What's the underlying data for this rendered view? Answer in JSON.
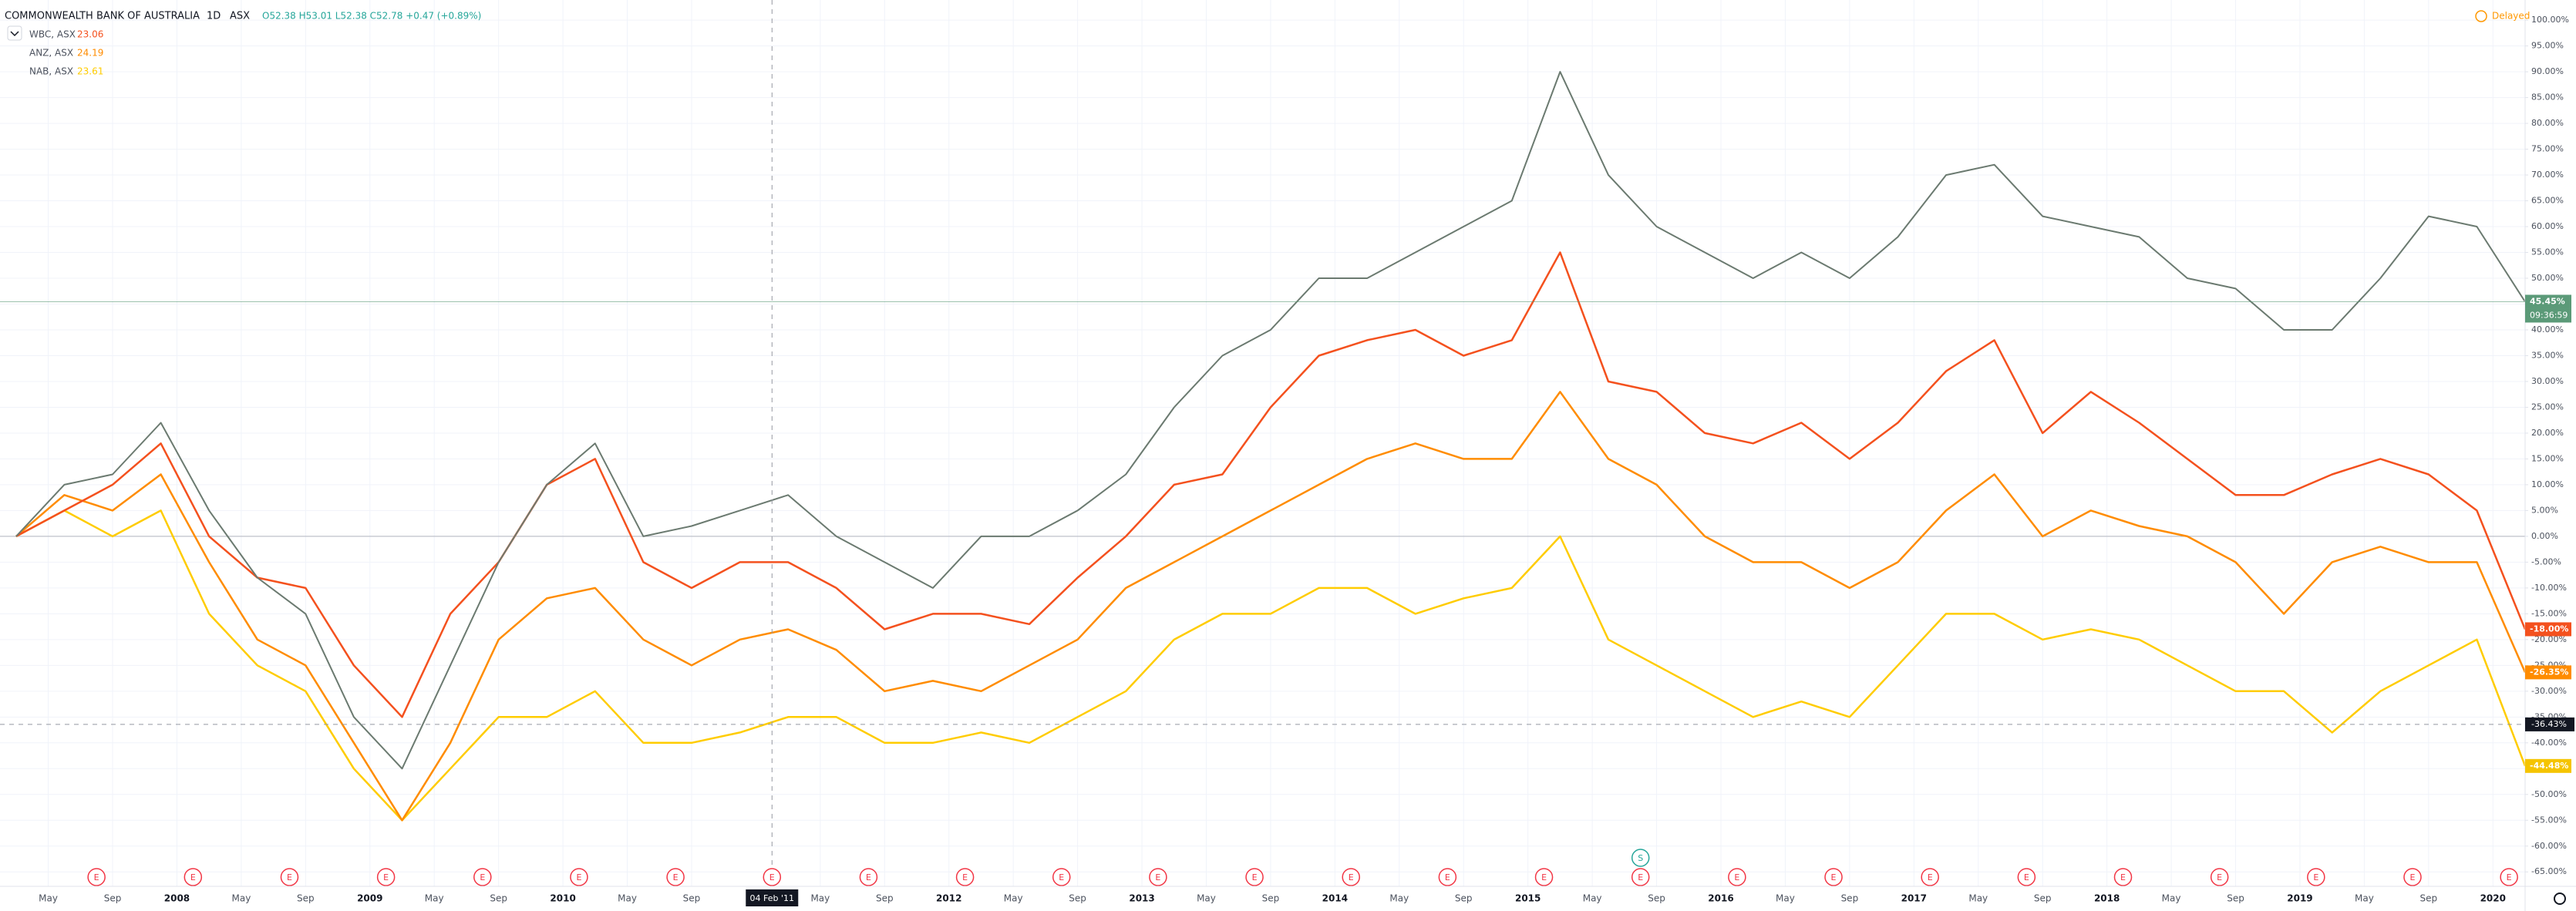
{
  "chart_data": {
    "type": "line",
    "interval": "1D",
    "exchange": "ASX",
    "ohlc_text": "O52.38 H53.01 L52.38 C52.78 +0.47 (+0.89%)",
    "status": "Delayed",
    "countdown": "09:36:59",
    "x": [
      "2007-03",
      "2007-06",
      "2007-09",
      "2007-12",
      "2008-03",
      "2008-06",
      "2008-09",
      "2008-12",
      "2009-03",
      "2009-06",
      "2009-09",
      "2009-12",
      "2010-03",
      "2010-06",
      "2010-09",
      "2010-12",
      "2011-03",
      "2011-06",
      "2011-09",
      "2011-12",
      "2012-03",
      "2012-06",
      "2012-09",
      "2012-12",
      "2013-03",
      "2013-06",
      "2013-09",
      "2013-12",
      "2014-03",
      "2014-06",
      "2014-09",
      "2014-12",
      "2015-03",
      "2015-06",
      "2015-09",
      "2015-12",
      "2016-03",
      "2016-06",
      "2016-09",
      "2016-12",
      "2017-03",
      "2017-06",
      "2017-09",
      "2017-12",
      "2018-03",
      "2018-06",
      "2018-09",
      "2018-12",
      "2019-03",
      "2019-06",
      "2019-09",
      "2019-12",
      "2020-03"
    ],
    "series": [
      {
        "name": "COMMONWEALTH BANK OF AUSTRALIA",
        "color": "#6b7a70",
        "last_label": "45.45%",
        "label_color": "#5b9a78",
        "values": [
          0,
          10,
          12,
          22,
          5,
          -8,
          -15,
          -35,
          -45,
          -25,
          -5,
          10,
          18,
          0,
          2,
          5,
          8,
          0,
          -5,
          -10,
          0,
          0,
          5,
          12,
          25,
          35,
          40,
          50,
          50,
          55,
          60,
          65,
          90,
          70,
          60,
          55,
          50,
          55,
          50,
          58,
          70,
          72,
          62,
          60,
          58,
          50,
          48,
          40,
          40,
          50,
          62,
          60,
          45.45
        ]
      },
      {
        "name": "WBC, ASX",
        "price": 23.06,
        "color": "#f4511e",
        "last_label": "-18.00%",
        "label_color": "#f4511e",
        "values": [
          0,
          5,
          10,
          18,
          0,
          -8,
          -10,
          -25,
          -35,
          -15,
          -5,
          10,
          15,
          -5,
          -10,
          -5,
          -5,
          -10,
          -18,
          -15,
          -15,
          -17,
          -8,
          0,
          10,
          12,
          25,
          35,
          38,
          40,
          35,
          38,
          55,
          30,
          28,
          20,
          18,
          22,
          15,
          22,
          32,
          38,
          20,
          28,
          22,
          15,
          8,
          8,
          12,
          15,
          12,
          5,
          -18
        ]
      },
      {
        "name": "ANZ, ASX",
        "price": 24.19,
        "color": "#ff8c00",
        "last_label": "-26.35%",
        "label_color": "#ff8c00",
        "values": [
          0,
          8,
          5,
          12,
          -5,
          -20,
          -25,
          -40,
          -55,
          -40,
          -20,
          -12,
          -10,
          -20,
          -25,
          -20,
          -18,
          -22,
          -30,
          -28,
          -30,
          -25,
          -20,
          -10,
          -5,
          0,
          5,
          10,
          15,
          18,
          15,
          15,
          28,
          15,
          10,
          0,
          -5,
          -5,
          -10,
          -5,
          5,
          12,
          0,
          5,
          2,
          0,
          -5,
          -15,
          -5,
          -2,
          -5,
          -5,
          -26.35
        ]
      },
      {
        "name": "NAB, ASX",
        "price": 23.61,
        "color": "#ffcc00",
        "last_label": "-44.48%",
        "label_color": "#f5c400",
        "values": [
          0,
          5,
          0,
          5,
          -15,
          -25,
          -30,
          -45,
          -55,
          -45,
          -35,
          -35,
          -30,
          -40,
          -40,
          -38,
          -35,
          -35,
          -40,
          -40,
          -38,
          -40,
          -35,
          -30,
          -20,
          -15,
          -15,
          -10,
          -10,
          -15,
          -12,
          -10,
          0,
          -20,
          -25,
          -30,
          -35,
          -32,
          -35,
          -25,
          -15,
          -15,
          -20,
          -18,
          -20,
          -25,
          -30,
          -30,
          -38,
          -30,
          -25,
          -20,
          -44.48
        ]
      }
    ],
    "xlim": [
      "2007-02",
      "2020-03"
    ],
    "ylim": [
      -67.8,
      103.9
    ],
    "grid": true,
    "yticks": [
      {
        "value": 100,
        "label": "100.00%"
      },
      {
        "value": 95,
        "label": "95.00%"
      },
      {
        "value": 90,
        "label": "90.00%"
      },
      {
        "value": 85,
        "label": "85.00%"
      },
      {
        "value": 80,
        "label": "80.00%"
      },
      {
        "value": 75,
        "label": "75.00%"
      },
      {
        "value": 70,
        "label": "70.00%"
      },
      {
        "value": 65,
        "label": "65.00%"
      },
      {
        "value": 60,
        "label": "60.00%"
      },
      {
        "value": 55,
        "label": "55.00%"
      },
      {
        "value": 50,
        "label": "50.00%"
      },
      {
        "value": 45,
        "label": "45.00%"
      },
      {
        "value": 40,
        "label": "40.00%"
      },
      {
        "value": 35,
        "label": "35.00%"
      },
      {
        "value": 30,
        "label": "30.00%"
      },
      {
        "value": 25,
        "label": "25.00%"
      },
      {
        "value": 20,
        "label": "20.00%"
      },
      {
        "value": 15,
        "label": "15.00%"
      },
      {
        "value": 10,
        "label": "10.00%"
      },
      {
        "value": 5,
        "label": "5.00%"
      },
      {
        "value": 0,
        "label": "0.00%"
      },
      {
        "value": -5,
        "label": "-5.00%"
      },
      {
        "value": -10,
        "label": "-10.00%"
      },
      {
        "value": -15,
        "label": "-15.00%"
      },
      {
        "value": -20,
        "label": "-20.00%"
      },
      {
        "value": -25,
        "label": "-25.00%"
      },
      {
        "value": -30,
        "label": "-30.00%"
      },
      {
        "value": -35,
        "label": "-35.00%"
      },
      {
        "value": -40,
        "label": "-40.00%"
      },
      {
        "value": -45,
        "label": "-45.00%"
      },
      {
        "value": -50,
        "label": "-50.00%"
      },
      {
        "value": -55,
        "label": "-55.00%"
      },
      {
        "value": -60,
        "label": "-60.00%"
      },
      {
        "value": -65,
        "label": "-65.00%"
      }
    ],
    "xticks": [
      {
        "value": "2007-05",
        "label": "May"
      },
      {
        "value": "2007-09",
        "label": "Sep"
      },
      {
        "value": "2008-01",
        "label": "2008"
      },
      {
        "value": "2008-05",
        "label": "May"
      },
      {
        "value": "2008-09",
        "label": "Sep"
      },
      {
        "value": "2009-01",
        "label": "2009"
      },
      {
        "value": "2009-05",
        "label": "May"
      },
      {
        "value": "2009-09",
        "label": "Sep"
      },
      {
        "value": "2010-01",
        "label": "2010"
      },
      {
        "value": "2010-05",
        "label": "May"
      },
      {
        "value": "2010-09",
        "label": "Sep"
      },
      {
        "value": "2011-05",
        "label": "May"
      },
      {
        "value": "2011-09",
        "label": "Sep"
      },
      {
        "value": "2012-01",
        "label": "2012"
      },
      {
        "value": "2012-05",
        "label": "May"
      },
      {
        "value": "2012-09",
        "label": "Sep"
      },
      {
        "value": "2013-01",
        "label": "2013"
      },
      {
        "value": "2013-05",
        "label": "May"
      },
      {
        "value": "2013-09",
        "label": "Sep"
      },
      {
        "value": "2014-01",
        "label": "2014"
      },
      {
        "value": "2014-05",
        "label": "May"
      },
      {
        "value": "2014-09",
        "label": "Sep"
      },
      {
        "value": "2015-01",
        "label": "2015"
      },
      {
        "value": "2015-05",
        "label": "May"
      },
      {
        "value": "2015-09",
        "label": "Sep"
      },
      {
        "value": "2016-01",
        "label": "2016"
      },
      {
        "value": "2016-05",
        "label": "May"
      },
      {
        "value": "2016-09",
        "label": "Sep"
      },
      {
        "value": "2017-01",
        "label": "2017"
      },
      {
        "value": "2017-05",
        "label": "May"
      },
      {
        "value": "2017-09",
        "label": "Sep"
      },
      {
        "value": "2018-01",
        "label": "2018"
      },
      {
        "value": "2018-05",
        "label": "May"
      },
      {
        "value": "2018-09",
        "label": "Sep"
      },
      {
        "value": "2019-01",
        "label": "2019"
      },
      {
        "value": "2019-05",
        "label": "May"
      },
      {
        "value": "2019-09",
        "label": "Sep"
      },
      {
        "value": "2020-01",
        "label": "2020"
      }
    ],
    "crosshair": {
      "x": "2011-02",
      "x_label": "04 Feb '11",
      "y": -36.43,
      "y_label": "-36.43%"
    },
    "earnings_label": "E",
    "earnings_dates": [
      "2007-08",
      "2008-02",
      "2008-08",
      "2009-02",
      "2009-08",
      "2010-02",
      "2010-08",
      "2011-02",
      "2011-08",
      "2012-02",
      "2012-08",
      "2013-02",
      "2013-08",
      "2014-02",
      "2014-08",
      "2015-02",
      "2015-08",
      "2016-02",
      "2016-08",
      "2017-02",
      "2017-08",
      "2018-02",
      "2018-08",
      "2019-02",
      "2019-08",
      "2020-02"
    ],
    "split_label": "S",
    "split_date": "2015-08"
  }
}
